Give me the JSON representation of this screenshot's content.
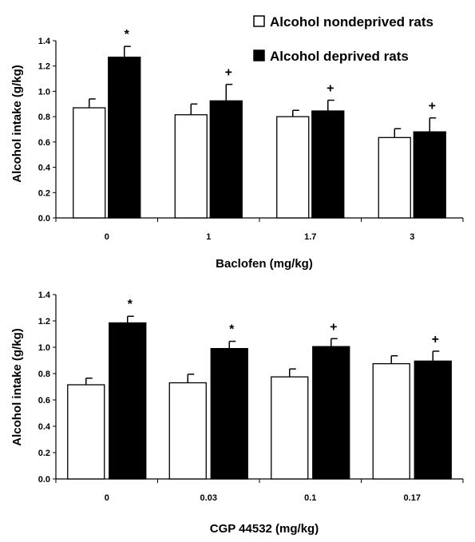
{
  "chart_data": [
    {
      "type": "bar",
      "title": "",
      "xlabel": "Baclofen (mg/kg)",
      "ylabel": "Alcohol intake (g/kg)",
      "ylim": [
        0,
        1.4
      ],
      "yticks": [
        "0.0",
        "0.2",
        "0.4",
        "0.6",
        "0.8",
        "1.0",
        "1.2",
        "1.4"
      ],
      "categories": [
        "0",
        "1",
        "1.7",
        "3"
      ],
      "legend": "top-right",
      "grid": false,
      "series": [
        {
          "name": "Alcohol nondeprived rats",
          "color": "#ffffff",
          "values": [
            0.87,
            0.815,
            0.8,
            0.635
          ],
          "errors": [
            0.07,
            0.085,
            0.05,
            0.07
          ],
          "markers": [
            "",
            "",
            "",
            ""
          ]
        },
        {
          "name": "Alcohol deprived rats",
          "color": "#000000",
          "values": [
            1.27,
            0.925,
            0.845,
            0.68
          ],
          "errors": [
            0.085,
            0.13,
            0.085,
            0.11
          ],
          "markers": [
            "*",
            "+",
            "+",
            "+"
          ]
        }
      ]
    },
    {
      "type": "bar",
      "title": "",
      "xlabel": "CGP 44532 (mg/kg)",
      "ylabel": "Alcohol intake (g/kg)",
      "ylim": [
        0,
        1.4
      ],
      "yticks": [
        "0.0",
        "0.2",
        "0.4",
        "0.6",
        "0.8",
        "1.0",
        "1.2",
        "1.4"
      ],
      "categories": [
        "0",
        "0.03",
        "0.1",
        "0.17"
      ],
      "grid": false,
      "series": [
        {
          "name": "Alcohol nondeprived rats",
          "color": "#ffffff",
          "values": [
            0.715,
            0.73,
            0.775,
            0.875
          ],
          "errors": [
            0.05,
            0.065,
            0.06,
            0.06
          ],
          "markers": [
            "",
            "",
            "",
            ""
          ]
        },
        {
          "name": "Alcohol deprived rats",
          "color": "#000000",
          "values": [
            1.185,
            0.99,
            1.005,
            0.895
          ],
          "errors": [
            0.05,
            0.055,
            0.06,
            0.075
          ],
          "markers": [
            "*",
            "*",
            "+",
            "+"
          ]
        }
      ]
    }
  ]
}
